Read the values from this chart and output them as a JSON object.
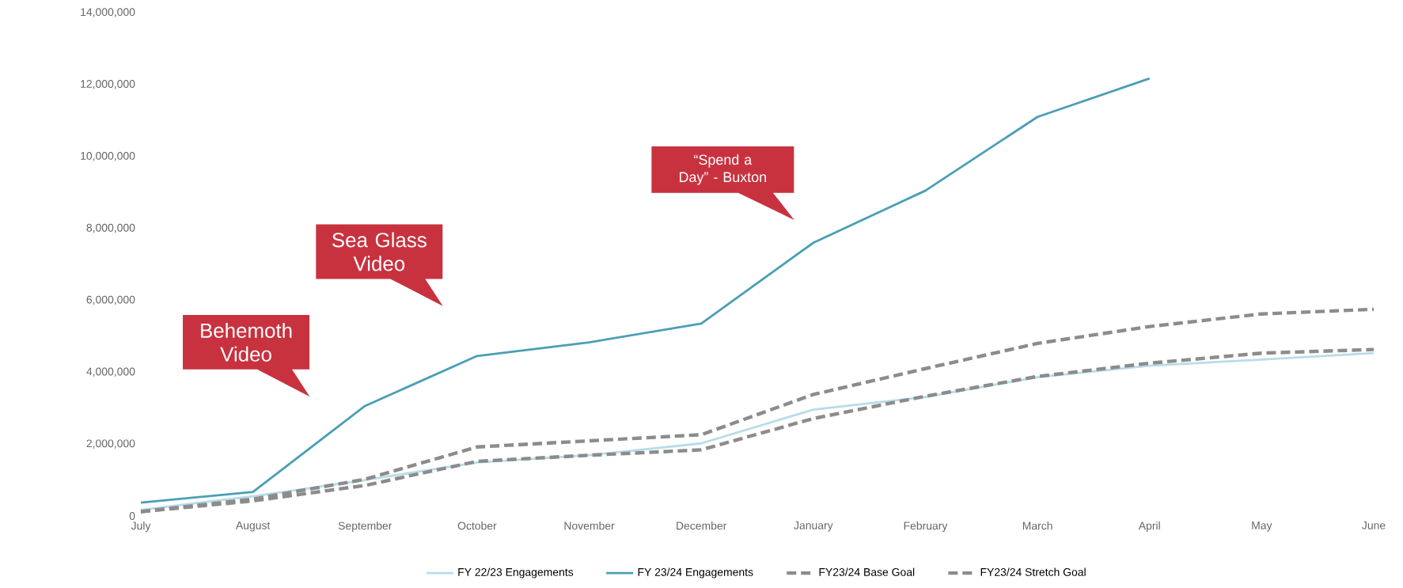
{
  "chart_data": {
    "type": "line",
    "categories": [
      "July",
      "August",
      "September",
      "October",
      "November",
      "December",
      "January",
      "February",
      "March",
      "April",
      "May",
      "June"
    ],
    "series": [
      {
        "name": "FY 22/23 Engagements",
        "color": "#b8dcea",
        "values": [
          170000,
          550000,
          1000000,
          1490000,
          1690000,
          2020000,
          2960000,
          3310000,
          3860000,
          4180000,
          4350000,
          4530000
        ]
      },
      {
        "name": "FY 23/24 Engagements",
        "color": "#4a9fb5",
        "values": [
          370000,
          670000,
          3060000,
          4450000,
          4830000,
          5350000,
          7600000,
          9050000,
          11100000,
          12170000,
          null,
          null
        ]
      },
      {
        "name": "FY23/24 Base Goal",
        "color": "#8c8c8c",
        "line_style": "dashed",
        "values": [
          120000,
          420000,
          850000,
          1520000,
          1690000,
          1840000,
          2710000,
          3330000,
          3880000,
          4250000,
          4530000,
          4630000
        ]
      },
      {
        "name": "FY23/24 Stretch Goal",
        "color": "#8c8c8c",
        "line_style": "dashed",
        "values": [
          120000,
          470000,
          1020000,
          1920000,
          2090000,
          2260000,
          3380000,
          4100000,
          4800000,
          5270000,
          5620000,
          5750000
        ]
      }
    ],
    "ylim": [
      0,
      14000000
    ],
    "yticks": [
      {
        "value": 0,
        "label": "0"
      },
      {
        "value": 2000000,
        "label": "2,000,000"
      },
      {
        "value": 4000000,
        "label": "4,000,000"
      },
      {
        "value": 6000000,
        "label": "6,000,000"
      },
      {
        "value": 8000000,
        "label": "8,000,000"
      },
      {
        "value": 10000000,
        "label": "10,000,000"
      },
      {
        "value": 12000000,
        "label": "12,000,000"
      },
      {
        "value": 14000000,
        "label": "14,000,000"
      }
    ],
    "annotations": [
      "Behemoth Video",
      "Sea Glass Video",
      "“Spend a Day” - Buxton"
    ],
    "legend": "bottom",
    "grid": false,
    "marker": "none"
  }
}
